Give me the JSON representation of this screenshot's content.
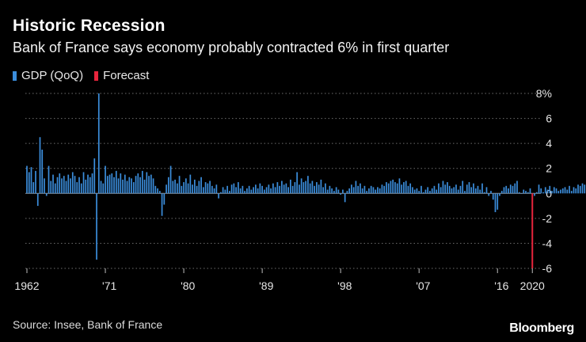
{
  "header": {
    "title": "Historic Recession",
    "subtitle": "Bank of France says economy probably contracted 6% in first quarter"
  },
  "legend": {
    "items": [
      {
        "label": "GDP (QoQ)",
        "color": "#3b8ddb"
      },
      {
        "label": "Forecast",
        "color": "#e8253c"
      }
    ]
  },
  "footer": {
    "source": "Source: Insee, Bank of France",
    "brand": "Bloomberg"
  },
  "chart_data": {
    "type": "bar",
    "ylim": [
      -6,
      8
    ],
    "y_ticks": [
      8,
      6,
      4,
      2,
      0,
      -2,
      -4,
      -6
    ],
    "y_tick_labels": [
      "8%",
      "6",
      "4",
      "2",
      "0",
      "-2",
      "-4",
      "-6"
    ],
    "x_tick_years": [
      1962,
      1971,
      1980,
      1989,
      1998,
      2007,
      2016,
      2020
    ],
    "x_tick_labels": [
      "1962",
      "'71",
      "'80",
      "'89",
      "'98",
      "'07",
      "'16",
      "2020"
    ],
    "x_range": [
      1962,
      2020.25
    ],
    "grid": "horizontal dotted",
    "series": [
      {
        "name": "GDP (QoQ)",
        "color": "#3b8ddb",
        "start_year": 1962,
        "quarters_per_year": 4,
        "values": [
          2.2,
          1.7,
          2.1,
          0.9,
          1.8,
          -1.0,
          4.5,
          3.5,
          1.2,
          -0.2,
          2.2,
          1.0,
          1.5,
          0.8,
          1.3,
          1.6,
          1.2,
          1.4,
          1.0,
          1.5,
          1.2,
          1.7,
          1.4,
          0.9,
          1.3,
          0.8,
          1.7,
          1.1,
          1.5,
          1.3,
          1.6,
          2.8,
          -5.3,
          8.0,
          1.0,
          0.8,
          2.2,
          1.4,
          1.5,
          1.6,
          1.3,
          1.8,
          1.2,
          1.6,
          1.1,
          1.5,
          1.0,
          1.3,
          1.2,
          0.9,
          1.4,
          1.6,
          1.3,
          1.8,
          1.1,
          1.7,
          1.4,
          1.5,
          1.2,
          0.6,
          0.4,
          0.2,
          -1.8,
          -0.9,
          0.7,
          1.3,
          2.2,
          1.0,
          1.1,
          0.8,
          1.4,
          0.6,
          0.9,
          1.2,
          0.8,
          1.5,
          0.7,
          1.1,
          0.6,
          1.0,
          1.3,
          0.5,
          0.9,
          0.8,
          1.0,
          0.6,
          0.4,
          0.7,
          -0.4,
          0.1,
          0.5,
          0.3,
          0.6,
          0.2,
          0.7,
          0.8,
          0.5,
          0.9,
          0.4,
          0.6,
          0.2,
          0.4,
          0.6,
          0.3,
          0.5,
          0.7,
          0.4,
          0.8,
          0.6,
          0.3,
          0.5,
          0.7,
          0.4,
          0.8,
          0.5,
          0.9,
          0.6,
          1.0,
          0.7,
          0.8,
          0.5,
          1.1,
          0.6,
          0.9,
          1.7,
          0.7,
          1.2,
          0.9,
          1.0,
          1.4,
          0.8,
          1.0,
          0.6,
          0.9,
          0.7,
          1.1,
          0.5,
          0.8,
          0.3,
          0.6,
          0.4,
          0.2,
          0.5,
          0.3,
          -0.1,
          0.3,
          -0.7,
          0.2,
          0.4,
          0.7,
          0.5,
          1.0,
          0.6,
          0.8,
          0.4,
          0.6,
          0.2,
          0.4,
          0.6,
          0.5,
          0.3,
          0.5,
          0.4,
          0.7,
          0.6,
          0.9,
          0.8,
          1.0,
          1.1,
          0.9,
          0.8,
          1.2,
          0.7,
          0.9,
          1.0,
          0.6,
          0.8,
          0.5,
          0.3,
          0.4,
          0.2,
          0.6,
          0.1,
          0.3,
          0.5,
          0.2,
          0.4,
          0.6,
          0.3,
          0.8,
          0.5,
          1.0,
          0.7,
          0.9,
          0.6,
          0.4,
          0.5,
          0.7,
          0.3,
          0.6,
          1.0,
          0.2,
          0.7,
          0.9,
          0.5,
          0.8,
          0.4,
          0.6,
          0.3,
          0.8,
          0.1,
          0.5,
          -0.2,
          0.2,
          -0.5,
          -1.5,
          -1.3,
          -0.2,
          0.2,
          0.5,
          0.6,
          0.4,
          0.7,
          0.6,
          0.8,
          1.0,
          0.1,
          0.0,
          0.3,
          0.2,
          0.1,
          0.4,
          0.0,
          -0.2,
          0.1,
          0.7,
          0.4,
          0.1,
          0.5,
          0.3,
          0.6,
          0.2,
          0.5,
          0.4,
          0.2,
          0.3,
          0.4,
          0.5,
          0.3,
          0.6,
          0.2,
          0.5,
          0.4,
          0.7,
          0.6,
          0.8,
          0.7,
          0.5,
          0.3,
          0.6,
          0.4,
          0.3,
          0.2,
          0.5,
          0.3
        ]
      },
      {
        "name": "Forecast",
        "color": "#e8253c",
        "values_by_year": [
          {
            "year": 2020,
            "value": -6.0
          }
        ]
      }
    ]
  }
}
